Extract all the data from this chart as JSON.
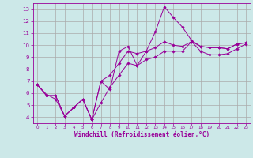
{
  "xlabel": "Windchill (Refroidissement éolien,°C)",
  "background_color": "#cce8e8",
  "grid_color": "#aaaaaa",
  "line_color": "#990099",
  "xlim": [
    -0.5,
    23.5
  ],
  "ylim": [
    3.5,
    13.5
  ],
  "xticks": [
    0,
    1,
    2,
    3,
    4,
    5,
    6,
    7,
    8,
    9,
    10,
    11,
    12,
    13,
    14,
    15,
    16,
    17,
    18,
    19,
    20,
    21,
    22,
    23
  ],
  "yticks": [
    4,
    5,
    6,
    7,
    8,
    9,
    10,
    11,
    12,
    13
  ],
  "series": [
    {
      "x": [
        0,
        1,
        2,
        3,
        4,
        5,
        6,
        7,
        8,
        9,
        10,
        11,
        12,
        13,
        14,
        15,
        16,
        17,
        18,
        19,
        20,
        21,
        22,
        23
      ],
      "y": [
        6.7,
        5.8,
        5.8,
        4.1,
        4.8,
        5.5,
        3.8,
        7.0,
        6.3,
        9.5,
        9.9,
        8.3,
        9.5,
        11.1,
        13.2,
        12.3,
        11.5,
        10.4,
        9.9,
        9.8,
        9.8,
        9.7,
        10.1,
        10.2
      ]
    },
    {
      "x": [
        0,
        1,
        2,
        3,
        4,
        5,
        6,
        7,
        8,
        9,
        10,
        11,
        12,
        13,
        14,
        15,
        16,
        17,
        18,
        19,
        20,
        21,
        22,
        23
      ],
      "y": [
        6.7,
        5.8,
        5.8,
        4.1,
        4.8,
        5.5,
        3.8,
        7.0,
        7.5,
        8.5,
        9.5,
        9.3,
        9.5,
        9.8,
        10.3,
        10.0,
        9.9,
        10.3,
        9.9,
        9.8,
        9.8,
        9.7,
        10.1,
        10.2
      ]
    },
    {
      "x": [
        0,
        1,
        2,
        3,
        4,
        5,
        6,
        7,
        8,
        9,
        10,
        11,
        12,
        13,
        14,
        15,
        16,
        17,
        18,
        19,
        20,
        21,
        22,
        23
      ],
      "y": [
        6.7,
        5.9,
        5.5,
        4.1,
        4.8,
        5.5,
        3.8,
        5.2,
        6.5,
        7.5,
        8.5,
        8.3,
        8.8,
        9.0,
        9.5,
        9.5,
        9.5,
        10.3,
        9.5,
        9.2,
        9.2,
        9.3,
        9.7,
        10.1
      ]
    }
  ]
}
